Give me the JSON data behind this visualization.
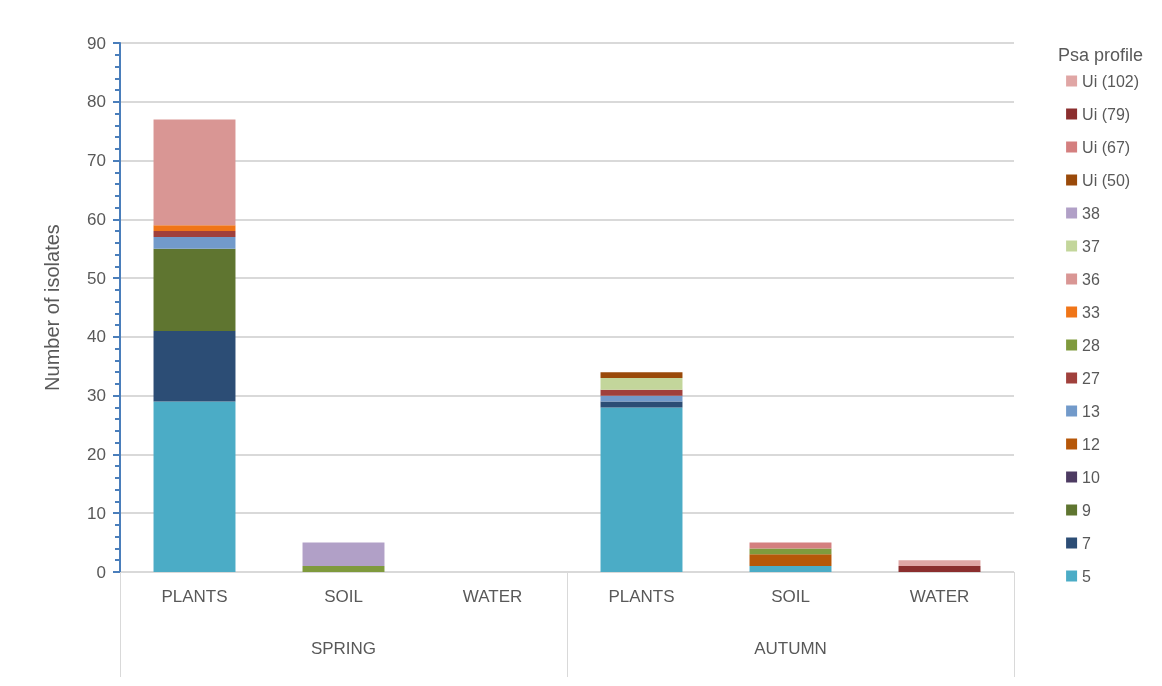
{
  "chart_data": {
    "type": "bar",
    "stacked": true,
    "ylabel": "Number of isolates",
    "legend_title": "Psa profile",
    "categories": [
      "PLANTS",
      "SOIL",
      "WATER",
      "PLANTS",
      "SOIL",
      "WATER"
    ],
    "annotations": [
      "SPRING",
      "AUTUMN"
    ],
    "series": [
      {
        "name": "5",
        "color": "#4bacc6",
        "values": [
          29,
          null,
          null,
          28,
          1,
          null
        ]
      },
      {
        "name": "7",
        "color": "#2c4d75",
        "values": [
          12,
          null,
          null,
          1,
          null,
          null
        ]
      },
      {
        "name": "9",
        "color": "#5f7530",
        "values": [
          14,
          null,
          null,
          null,
          null,
          null
        ]
      },
      {
        "name": "10",
        "color": "#4d3b62",
        "values": [
          null,
          null,
          null,
          null,
          null,
          null
        ]
      },
      {
        "name": "12",
        "color": "#b65708",
        "values": [
          null,
          null,
          null,
          null,
          2,
          null
        ]
      },
      {
        "name": "13",
        "color": "#729aca",
        "values": [
          2,
          null,
          null,
          1,
          null,
          null
        ]
      },
      {
        "name": "27",
        "color": "#a0403c",
        "values": [
          1,
          null,
          null,
          1,
          null,
          null
        ]
      },
      {
        "name": "28",
        "color": "#7f9a3d",
        "values": [
          null,
          1,
          null,
          null,
          1,
          null
        ]
      },
      {
        "name": "33",
        "color": "#f07518",
        "values": [
          1,
          null,
          null,
          null,
          null,
          null
        ]
      },
      {
        "name": "36",
        "color": "#d99694",
        "values": [
          18,
          null,
          null,
          null,
          null,
          null
        ]
      },
      {
        "name": "37",
        "color": "#c3d69b",
        "values": [
          null,
          null,
          null,
          2,
          null,
          null
        ]
      },
      {
        "name": "38",
        "color": "#b1a0c7",
        "values": [
          null,
          4,
          null,
          null,
          null,
          null
        ]
      },
      {
        "name": "Ui (50)",
        "color": "#9a4a0a",
        "values": [
          null,
          null,
          null,
          1,
          null,
          null
        ]
      },
      {
        "name": "Ui (67)",
        "color": "#d47f7f",
        "values": [
          null,
          null,
          null,
          null,
          1,
          null
        ]
      },
      {
        "name": "Ui (79)",
        "color": "#8b2e2e",
        "values": [
          null,
          null,
          null,
          null,
          null,
          1
        ]
      },
      {
        "name": "Ui (102)",
        "color": "#e0a6a5",
        "values": [
          null,
          null,
          null,
          null,
          null,
          1
        ]
      }
    ],
    "ylim": [
      0,
      90
    ],
    "yticks": [
      0,
      10,
      20,
      30,
      40,
      50,
      60,
      70,
      80,
      90
    ],
    "grid": "y",
    "legend": "right"
  }
}
